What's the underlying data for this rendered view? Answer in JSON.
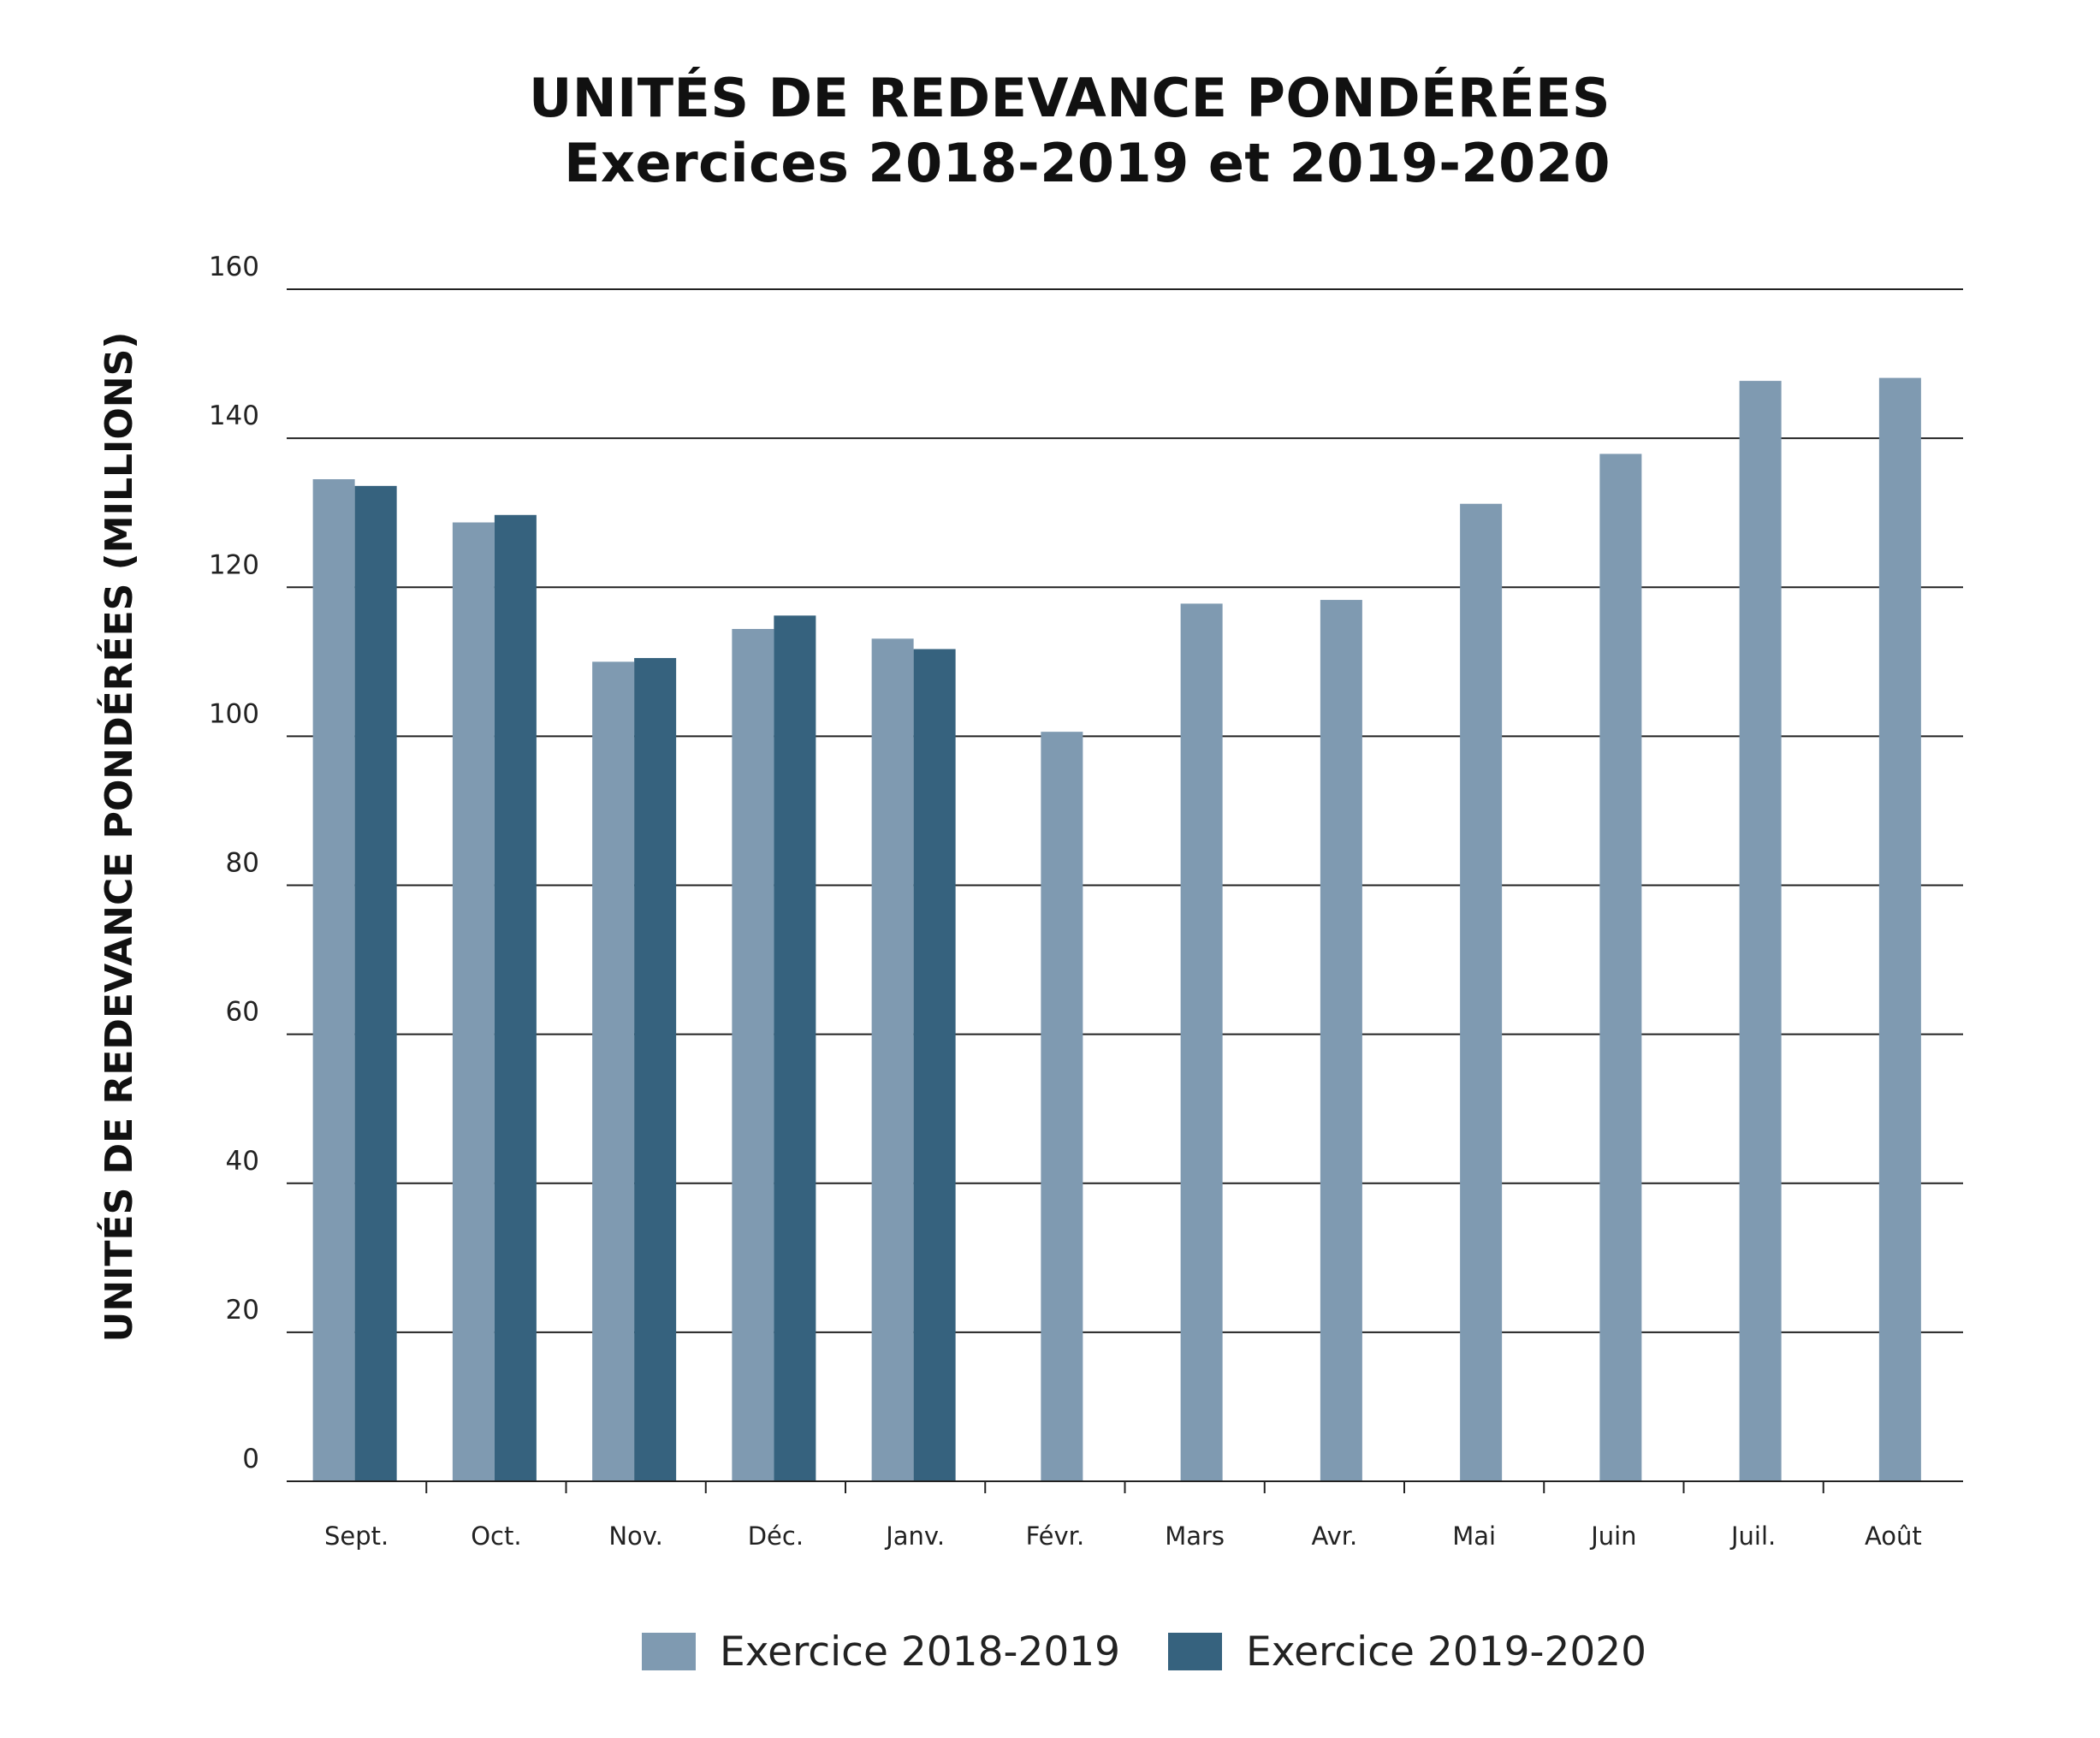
{
  "chart_data": {
    "type": "bar",
    "title": "UNITÉS DE REDEVANCE PONDÉRÉES",
    "subtitle": "Exercices 2018-2019 et 2019-2020",
    "xlabel": "",
    "ylabel": "UNITÉS DE REDEVANCE PONDÉRÉES (MILLIONS)",
    "ylim": [
      0,
      160
    ],
    "yticks": [
      0,
      20,
      40,
      60,
      80,
      100,
      120,
      140,
      160
    ],
    "grid": true,
    "legend_position": "bottom",
    "categories": [
      "Sept.",
      "Oct.",
      "Nov.",
      "Déc.",
      "Janv.",
      "Févr.",
      "Mars",
      "Avr.",
      "Mai",
      "Juin",
      "Juil.",
      "Août"
    ],
    "series": [
      {
        "name": "Exercice 2018-2019",
        "color": "#7f9ab1",
        "values": [
          134.5,
          128.7,
          110.0,
          114.4,
          113.1,
          100.6,
          117.8,
          118.3,
          131.2,
          137.9,
          147.7,
          148.1
        ]
      },
      {
        "name": "Exercice 2019-2020",
        "color": "#36627e",
        "values": [
          133.6,
          129.7,
          110.5,
          116.2,
          111.7,
          null,
          null,
          null,
          null,
          null,
          null,
          null
        ]
      }
    ]
  }
}
